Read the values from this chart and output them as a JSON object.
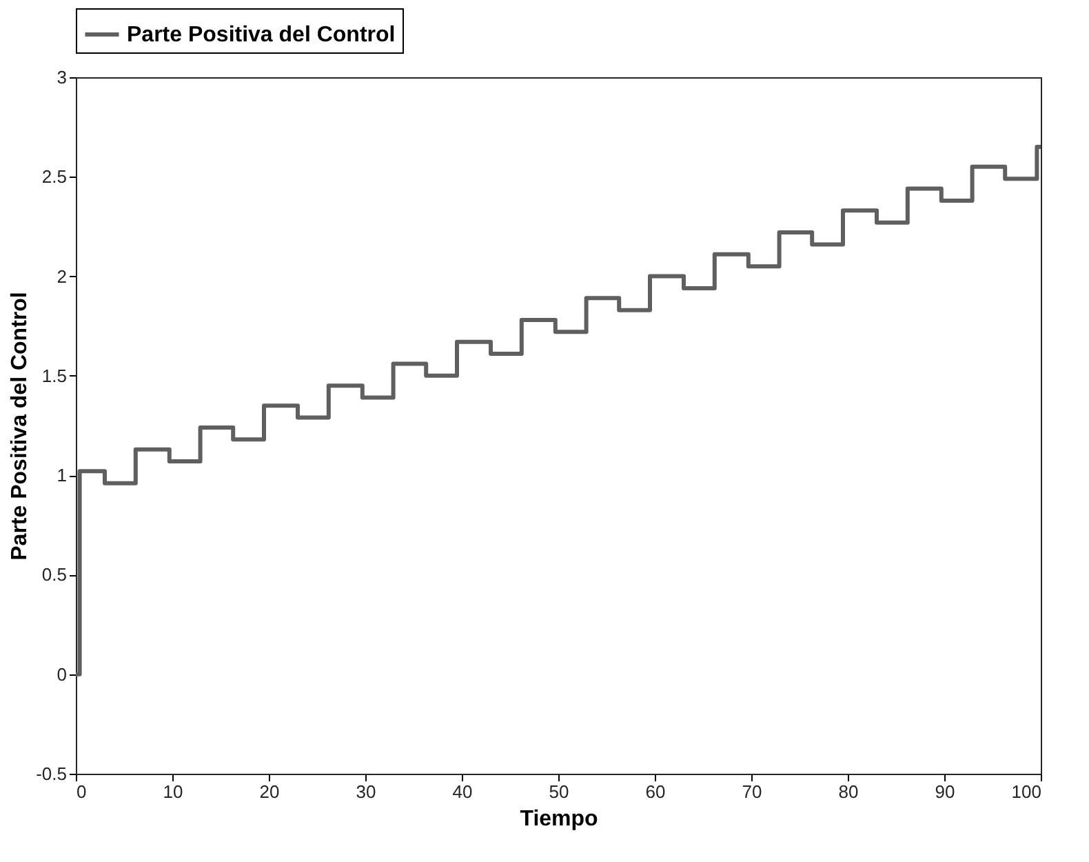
{
  "chart_data": {
    "type": "step",
    "xlabel": "Tiempo",
    "ylabel": "Parte Positiva del Control",
    "xlim": [
      0,
      100
    ],
    "ylim": [
      -0.5,
      3
    ],
    "xticks": [
      0,
      10,
      20,
      30,
      40,
      50,
      60,
      70,
      80,
      90,
      100
    ],
    "yticks": [
      -0.5,
      0,
      0.5,
      1,
      1.5,
      2,
      2.5,
      3
    ],
    "grid": false,
    "legend": "top",
    "line_style": "solid",
    "marker": "none",
    "series": [
      {
        "name": "Parte Positiva del Control",
        "color": "#5f5f5f",
        "x": [
          0,
          0.4,
          3.0,
          6.2,
          9.7,
          12.9,
          16.3,
          19.5,
          23.0,
          26.2,
          29.7,
          32.9,
          36.3,
          39.5,
          43.0,
          46.2,
          49.7,
          52.9,
          56.3,
          59.5,
          63.0,
          66.2,
          69.7,
          72.9,
          76.3,
          79.5,
          83.0,
          86.2,
          89.7,
          92.9,
          96.3,
          99.6,
          100
        ],
        "values": [
          0,
          1.02,
          0.96,
          1.13,
          1.07,
          1.24,
          1.18,
          1.35,
          1.29,
          1.45,
          1.39,
          1.56,
          1.5,
          1.67,
          1.61,
          1.78,
          1.72,
          1.89,
          1.83,
          2.0,
          1.94,
          2.11,
          2.05,
          2.22,
          2.16,
          2.33,
          2.27,
          2.44,
          2.38,
          2.55,
          2.49,
          2.65,
          2.65
        ]
      }
    ]
  }
}
